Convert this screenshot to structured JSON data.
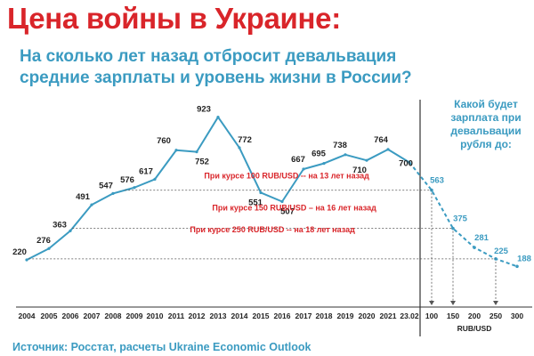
{
  "title": "Цена войны в Украине:",
  "subtitle": "На сколько лет назад отбросит девальвация средние зарплаты и уровень жизни в России?",
  "side_note": "Какой будет зарплата при девальвации рубля до:",
  "source": "Источник: Росстат, расчеты Ukraine Economic Outlook",
  "colors": {
    "title": "#d9252a",
    "accent": "#3b9bc1",
    "line": "#3b9bc1",
    "annotation": "#d9252a"
  },
  "chart_data": {
    "type": "line",
    "title": "Цена войны в Украине:",
    "ylabel": "",
    "xlabel": "RUB/USD",
    "series": [
      {
        "x": [
          "2004",
          "2005",
          "2006",
          "2007",
          "2008",
          "2009",
          "2010",
          "2011",
          "2012",
          "2013",
          "2014",
          "2015",
          "2016",
          "2017",
          "2018",
          "2019",
          "2020",
          "2021",
          "23.02"
        ],
        "values": [
          220,
          276,
          363,
          491,
          547,
          576,
          617,
          760,
          752,
          923,
          772,
          551,
          507,
          667,
          695,
          738,
          710,
          764,
          700
        ]
      },
      {
        "x": [
          "100",
          "150",
          "200",
          "250",
          "300"
        ],
        "values": [
          563,
          375,
          281,
          225,
          188
        ]
      }
    ],
    "x_ticks": [
      "2004",
      "2005",
      "2006",
      "2007",
      "2008",
      "2009",
      "2010",
      "2011",
      "2012",
      "2013",
      "2014",
      "2015",
      "2016",
      "2017",
      "2018",
      "2019",
      "2020",
      "2021",
      "23.02",
      "100",
      "150",
      "200",
      "250",
      "300"
    ],
    "annotations": [
      {
        "text": "При курсе 100 RUB/USD -- на 13 лет назад",
        "value": 563
      },
      {
        "text": "При курсе 150 RUB/USD – на 16 лет назад",
        "value": 375
      },
      {
        "text": "При курсе 250 RUB/USD --  на 18 лет назад",
        "value": 225
      }
    ],
    "grid": false,
    "legend": "none"
  }
}
